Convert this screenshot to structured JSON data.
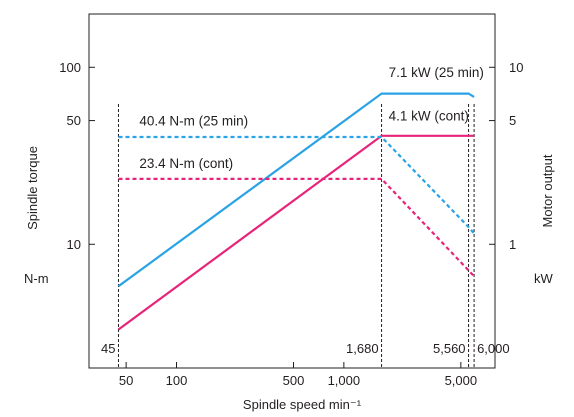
{
  "chart_data": {
    "type": "line",
    "x_scale": "log",
    "y_scale": "log",
    "xlim": [
      30,
      8000
    ],
    "ylim": [
      2,
      200
    ],
    "y2lim": [
      0.2,
      20
    ],
    "grid": false,
    "legend": "none",
    "xlabel": "Spindle speed min⁻¹",
    "ylabel": "Spindle torque",
    "ylabel_unit": "N-m",
    "y2label": "Motor output",
    "y2label_unit": "kW",
    "x_ticks": [
      {
        "value": 50,
        "label": "50"
      },
      {
        "value": 100,
        "label": "100"
      },
      {
        "value": 500,
        "label": "500"
      },
      {
        "value": 1000,
        "label": "1,000"
      },
      {
        "value": 5000,
        "label": "5,000"
      }
    ],
    "y_ticks": [
      {
        "value": 100,
        "label": "100"
      },
      {
        "value": 50,
        "label": "50"
      },
      {
        "value": 10,
        "label": "10"
      }
    ],
    "y2_ticks": [
      {
        "value": 10,
        "label": "10"
      },
      {
        "value": 5,
        "label": "5"
      },
      {
        "value": 1,
        "label": "1"
      }
    ],
    "speed_markers": [
      {
        "value": 45,
        "label": "45"
      },
      {
        "value": 1680,
        "label": "1,680"
      },
      {
        "value": 5560,
        "label": "5,560"
      },
      {
        "value": 6000,
        "label": "6,000"
      }
    ],
    "series": [
      {
        "kind": "power",
        "color": "#2aa3e4",
        "dash": false,
        "x": [
          45,
          1680,
          5560,
          6000
        ],
        "y": [
          5.8,
          71,
          71,
          68
        ]
      },
      {
        "kind": "power",
        "color": "#e8247a",
        "dash": false,
        "x": [
          45,
          1680,
          6000
        ],
        "y": [
          3.3,
          41,
          41
        ]
      },
      {
        "kind": "torque",
        "color": "#2aa3e4",
        "dash": true,
        "x": [
          45,
          1680,
          5560,
          6000
        ],
        "y": [
          40.4,
          40.4,
          12.5,
          11.5
        ]
      },
      {
        "kind": "torque",
        "color": "#e8247a",
        "dash": true,
        "x": [
          45,
          1680,
          6000
        ],
        "y": [
          23.4,
          23.4,
          6.6
        ]
      }
    ],
    "annotations": [
      {
        "text": "40.4 N-m (25 min)",
        "x": 60,
        "y": 47
      },
      {
        "text": "23.4 N-m (cont)",
        "x": 60,
        "y": 27
      },
      {
        "text": "7.1 kW (25 min)",
        "x": 1850,
        "y": 88
      },
      {
        "text": "4.1 kW (cont)",
        "x": 1850,
        "y": 50
      }
    ]
  }
}
